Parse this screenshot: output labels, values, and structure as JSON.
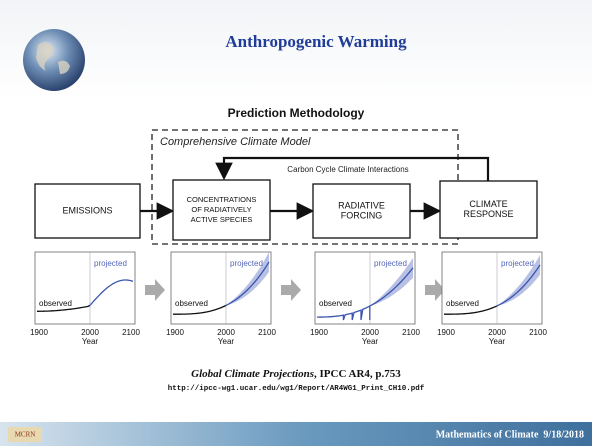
{
  "header": {
    "title": "Anthropogenic Warming"
  },
  "subtitle": "Prediction Methodology",
  "diagram": {
    "frame_label": "Comprehensive Climate Model",
    "loop_label": "Carbon Cycle Climate Interactions",
    "nodes": [
      {
        "lines": [
          "EMISSIONS"
        ]
      },
      {
        "lines": [
          "CONCENTRATIONS",
          "OF RADIATIVELY",
          "ACTIVE SPECIES"
        ]
      },
      {
        "lines": [
          "RADIATIVE",
          "FORCING"
        ]
      },
      {
        "lines": [
          "CLIMATE",
          "RESPONSE"
        ]
      }
    ]
  },
  "panels": [
    {
      "ticks": [
        "1900",
        "2000",
        "2100"
      ],
      "xlabel": "Year",
      "observed": "observed",
      "projected": "projected"
    },
    {
      "ticks": [
        "1900",
        "2000",
        "2100"
      ],
      "xlabel": "Year",
      "observed": "observed",
      "projected": "projected"
    },
    {
      "ticks": [
        "1900",
        "2000",
        "2100"
      ],
      "xlabel": "Year",
      "observed": "observed",
      "projected": "projected"
    },
    {
      "ticks": [
        "1900",
        "2000",
        "2100"
      ],
      "xlabel": "Year",
      "observed": "observed",
      "projected": "projected"
    }
  ],
  "caption": {
    "title": "Global Climate Projections",
    "source": ", IPCC AR4, p.753",
    "url": "http://ipcc-wg1.ucar.edu/wg1/Report/AR4WG1_Print_CH10.pdf"
  },
  "footer": {
    "logo": "MCRN",
    "text": "Mathematics of Climate  9/18/2018"
  }
}
